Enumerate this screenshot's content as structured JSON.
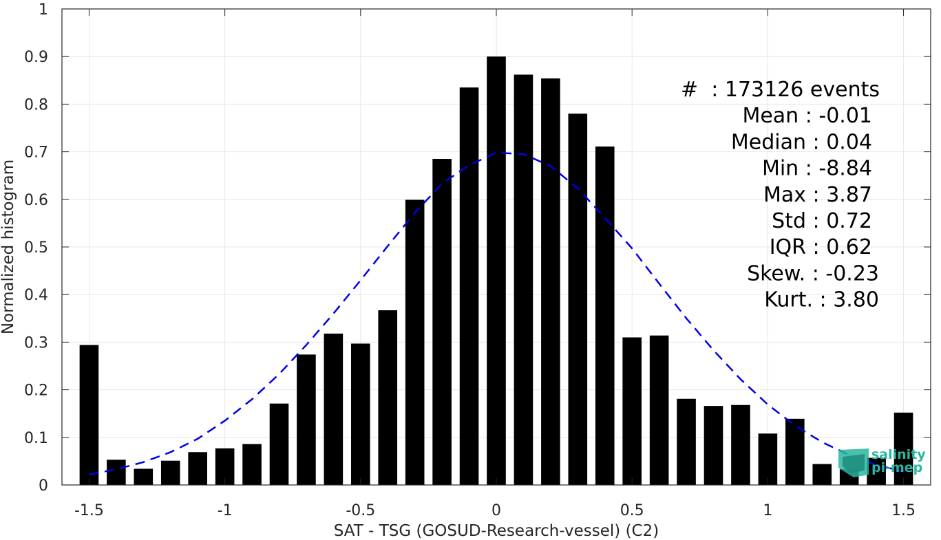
{
  "chart_data": {
    "type": "bar",
    "xlabel": "SAT - TSG (GOSUD-Research-vessel) (C2)",
    "ylabel": "Normalized histogram",
    "xlim": [
      -1.6,
      1.6
    ],
    "ylim": [
      0,
      1
    ],
    "grid": true,
    "bar_width": 0.07,
    "x_ticks": [
      -1.5,
      -1,
      -0.5,
      0,
      0.5,
      1,
      1.5
    ],
    "x_tick_labels": [
      "-1.5",
      "-1",
      "-0.5",
      "0",
      "0.5",
      "1",
      "1.5"
    ],
    "y_ticks": [
      0,
      0.1,
      0.2,
      0.3,
      0.4,
      0.5,
      0.6,
      0.7,
      0.8,
      0.9,
      1
    ],
    "y_tick_labels": [
      "0",
      "0.1",
      "0.2",
      "0.3",
      "0.4",
      "0.5",
      "0.6",
      "0.7",
      "0.8",
      "0.9",
      "1"
    ],
    "bars": {
      "x": [
        -1.5,
        -1.4,
        -1.3,
        -1.2,
        -1.1,
        -1.0,
        -0.9,
        -0.8,
        -0.7,
        -0.6,
        -0.5,
        -0.4,
        -0.3,
        -0.2,
        -0.1,
        0.0,
        0.1,
        0.2,
        0.3,
        0.4,
        0.5,
        0.6,
        0.7,
        0.8,
        0.9,
        1.0,
        1.1,
        1.2,
        1.3,
        1.4,
        1.5
      ],
      "values": [
        0.294,
        0.053,
        0.034,
        0.051,
        0.069,
        0.077,
        0.086,
        0.171,
        0.274,
        0.318,
        0.297,
        0.367,
        0.599,
        0.685,
        0.835,
        0.9,
        0.862,
        0.854,
        0.78,
        0.711,
        0.31,
        0.314,
        0.181,
        0.166,
        0.168,
        0.108,
        0.139,
        0.044,
        0.033,
        0.057,
        0.152
      ],
      "color": "#000000"
    },
    "fit_curve": {
      "style": "dashed",
      "color": "#0000e6",
      "x": [
        -1.5,
        -1.4,
        -1.3,
        -1.2,
        -1.1,
        -1.0,
        -0.9,
        -0.8,
        -0.7,
        -0.6,
        -0.5,
        -0.4,
        -0.3,
        -0.2,
        -0.1,
        0.0,
        0.1,
        0.2,
        0.3,
        0.4,
        0.5,
        0.6,
        0.7,
        0.8,
        0.9,
        1.0,
        1.1,
        1.2,
        1.3,
        1.4,
        1.5
      ],
      "y": [
        0.022,
        0.033,
        0.048,
        0.069,
        0.097,
        0.135,
        0.18,
        0.233,
        0.294,
        0.36,
        0.43,
        0.502,
        0.572,
        0.633,
        0.672,
        0.698,
        0.695,
        0.67,
        0.623,
        0.561,
        0.497,
        0.423,
        0.35,
        0.283,
        0.222,
        0.169,
        0.125,
        0.09,
        0.063,
        0.042,
        0.028
      ]
    },
    "stats_lines": [
      "#  : 173126 events",
      "Mean : -0.01",
      "Median : 0.04",
      "Min : -8.84",
      "Max : 3.87",
      "Std : 0.72",
      "IQR : 0.62",
      "Skew. : -0.23",
      "Kurt. : 3.80"
    ]
  },
  "logo": {
    "line1": "salinity",
    "line2": "pi-mep",
    "color": "#29b6a0"
  }
}
